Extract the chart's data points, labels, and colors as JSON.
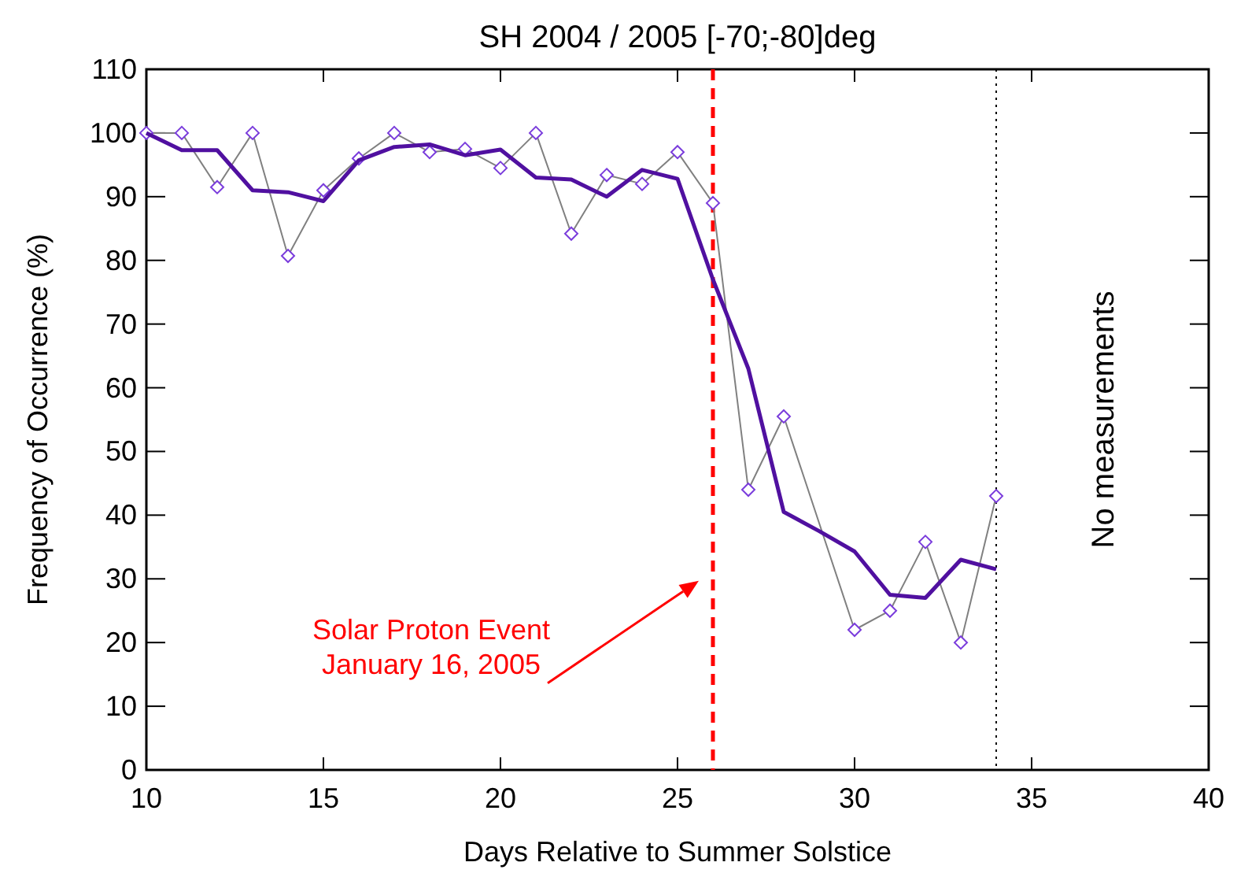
{
  "chart_data": {
    "type": "line",
    "title": "SH 2004 / 2005    [-70;-80]deg",
    "xlabel": "Days Relative to Summer Solstice",
    "ylabel": "Frequency of Occurrence (%)",
    "xlim": [
      10,
      40
    ],
    "xticks": [
      10,
      15,
      20,
      25,
      30,
      35,
      40
    ],
    "ylim": [
      0,
      110
    ],
    "yticks": [
      0,
      10,
      20,
      30,
      40,
      50,
      60,
      70,
      80,
      90,
      100,
      110
    ],
    "grid": false,
    "series": [
      {
        "color": "#808080",
        "marker": "diamond",
        "x": [
          10,
          11,
          12,
          13,
          14,
          15,
          16,
          17,
          18,
          19,
          20,
          21,
          22,
          23,
          24,
          25,
          26,
          27,
          28,
          30,
          31,
          32,
          33,
          34
        ],
        "values": [
          100,
          100,
          91.5,
          100,
          80.7,
          91,
          96,
          100,
          97,
          97.5,
          94.5,
          100,
          84.2,
          93.4,
          92,
          97,
          89,
          44,
          55.5,
          22,
          25,
          35.8,
          20,
          43
        ]
      },
      {
        "color": "#5010a0",
        "marker": "none",
        "x": [
          10,
          11,
          12,
          13,
          14,
          15,
          16,
          17,
          18,
          19,
          20,
          21,
          22,
          23,
          24,
          25,
          26,
          27,
          28,
          29,
          30,
          31,
          32,
          33,
          34
        ],
        "values": [
          100,
          97.3,
          97.3,
          91,
          90.7,
          89.3,
          95.7,
          97.8,
          98.2,
          96.5,
          97.4,
          93,
          92.7,
          90,
          94.2,
          92.8,
          77,
          63,
          40.5,
          37.5,
          34.3,
          27.5,
          27,
          33,
          31.5
        ]
      }
    ],
    "ref_lines": [
      {
        "axis": "x",
        "value": 26,
        "color": "#ff0000",
        "line_style": "dashed"
      },
      {
        "axis": "x",
        "value": 34,
        "color": "#000000",
        "line_style": "dotted"
      }
    ],
    "annotations": [
      "Solar Proton Event\nJanuary 16, 2005",
      "No  measurements"
    ]
  }
}
